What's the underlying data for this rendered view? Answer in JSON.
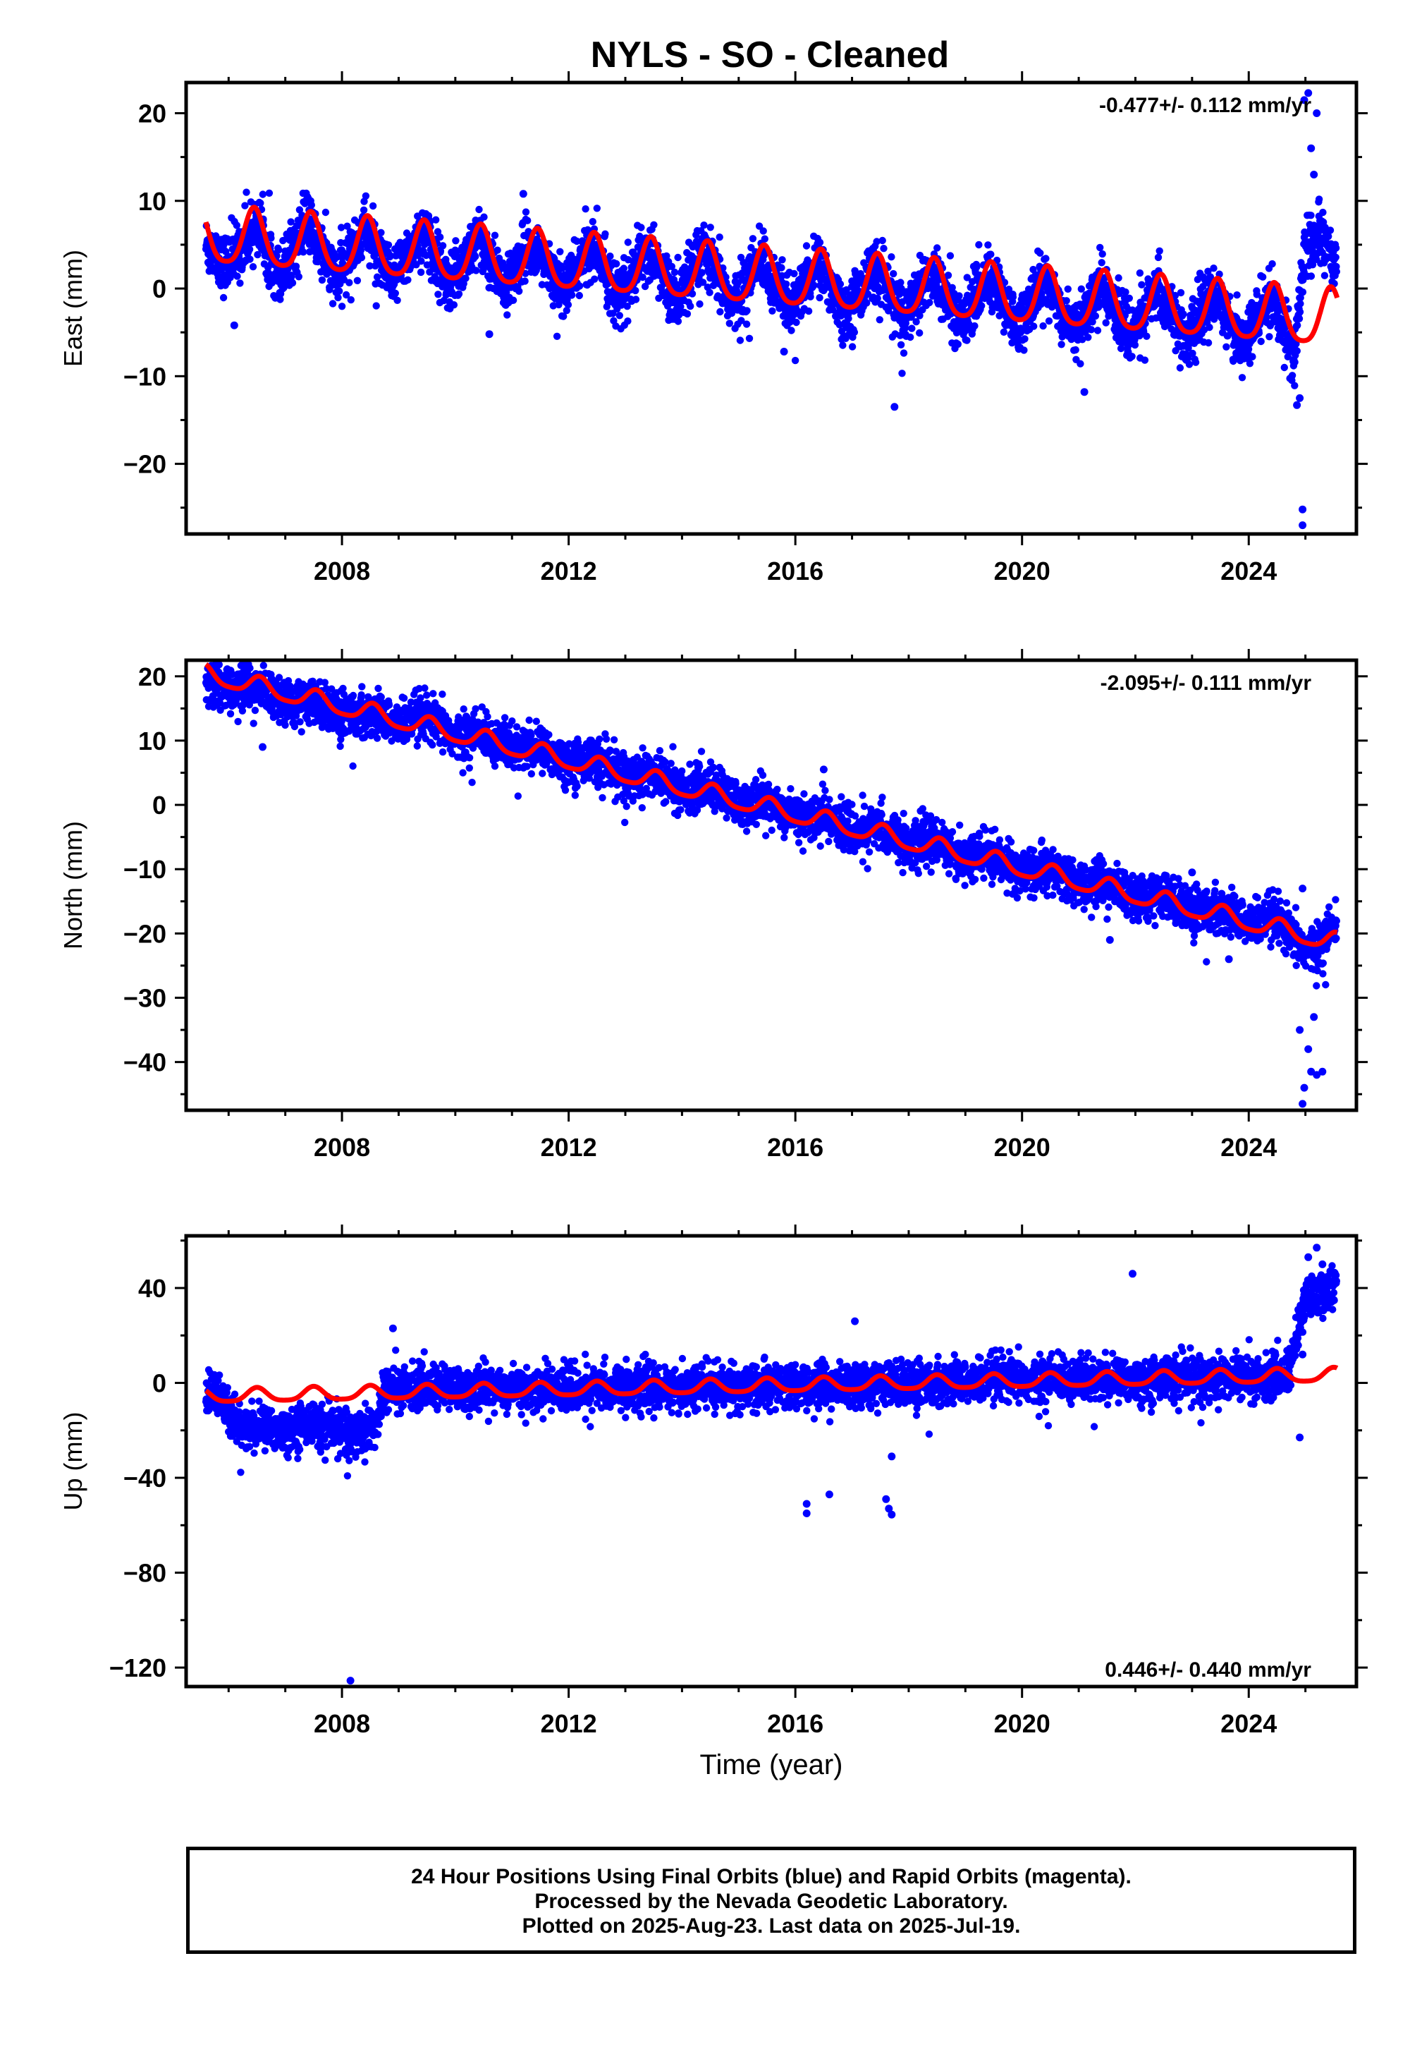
{
  "title": "NYLS  - SO - Cleaned",
  "colors": {
    "data": "#0000ff",
    "model": "#ff0000",
    "axis": "#000000"
  },
  "footer": {
    "line1": "24 Hour Positions Using Final Orbits (blue) and Rapid Orbits (magenta).",
    "line2": "Processed by the Nevada Geodetic Laboratory.",
    "line3": "Plotted on 2025-Aug-23. Last data on 2025-Jul-19."
  },
  "chart_data": [
    {
      "type": "scatter",
      "component": "east",
      "ylabel": "East (mm)",
      "xlabel": "",
      "rate_text": "-0.477+/- 0.112 mm/yr",
      "xlim": [
        2005.25,
        2025.9
      ],
      "ylim": [
        -28,
        23.5
      ],
      "xticks": [
        2008,
        2012,
        2016,
        2020,
        2024
      ],
      "yticks": [
        20,
        10,
        0,
        -10,
        -20
      ],
      "grid": false,
      "model": {
        "intercept_2015": 1.4,
        "rate": -0.477,
        "annual_amp": 3.2,
        "annual_peak": 0.45,
        "semiannual_amp": 0.6
      },
      "observations": {
        "start": 2005.6,
        "end": 2025.55,
        "scatter_sd": 1.6,
        "series": [
          {
            "name": "Final Orbits (blue)",
            "values": [
              [
                2005.6,
                5.0
              ],
              [
                2005.9,
                2.5
              ],
              [
                2006.2,
                4.5
              ],
              [
                2006.5,
                7.5
              ],
              [
                2006.9,
                1.5
              ],
              [
                2007.4,
                7.5
              ],
              [
                2007.9,
                1.0
              ],
              [
                2008.4,
                7.0
              ],
              [
                2008.9,
                0.8
              ],
              [
                2009.4,
                6.5
              ],
              [
                2009.9,
                0.5
              ],
              [
                2010.4,
                6.0
              ],
              [
                2010.9,
                0.0
              ],
              [
                2011.3,
                5.5
              ],
              [
                2011.9,
                -0.5
              ],
              [
                2012.4,
                5.0
              ],
              [
                2012.9,
                -1.0
              ],
              [
                2013.4,
                4.5
              ],
              [
                2013.9,
                -1.5
              ],
              [
                2014.4,
                4.0
              ],
              [
                2014.9,
                -2.0
              ],
              [
                2015.4,
                3.5
              ],
              [
                2015.9,
                -2.5
              ],
              [
                2016.4,
                3.0
              ],
              [
                2016.9,
                -3.0
              ],
              [
                2017.4,
                2.5
              ],
              [
                2017.9,
                -3.5
              ],
              [
                2018.4,
                2.0
              ],
              [
                2018.9,
                -4.0
              ],
              [
                2019.4,
                1.5
              ],
              [
                2019.9,
                -4.5
              ],
              [
                2020.4,
                1.0
              ],
              [
                2020.9,
                -5.0
              ],
              [
                2021.4,
                0.5
              ],
              [
                2021.9,
                -5.5
              ],
              [
                2022.4,
                0.0
              ],
              [
                2022.9,
                -6.0
              ],
              [
                2023.4,
                -0.5
              ],
              [
                2023.9,
                -6.5
              ],
              [
                2024.4,
                -1.0
              ],
              [
                2024.8,
                -7.5
              ],
              [
                2025.0,
                5.0
              ],
              [
                2025.3,
                6.0
              ],
              [
                2025.5,
                2.5
              ]
            ]
          }
        ],
        "outliers": [
          [
            2006.1,
            -4.2
          ],
          [
            2011.2,
            10.8
          ],
          [
            2017.75,
            -13.5
          ],
          [
            2021.1,
            -11.8
          ],
          [
            2024.85,
            -13.3
          ],
          [
            2024.95,
            -25.2
          ],
          [
            2024.95,
            -27.0
          ],
          [
            2024.98,
            21.5
          ],
          [
            2025.05,
            22.3
          ],
          [
            2025.2,
            20.0
          ],
          [
            2025.1,
            16.0
          ],
          [
            2025.15,
            13.0
          ],
          [
            2010.6,
            -5.2
          ],
          [
            2015.8,
            -7.2
          ],
          [
            2024.9,
            -12.5
          ]
        ]
      }
    },
    {
      "type": "scatter",
      "component": "north",
      "ylabel": "North (mm)",
      "xlabel": "",
      "rate_text": "-2.095+/- 0.111 mm/yr",
      "xlim": [
        2005.25,
        2025.9
      ],
      "ylim": [
        -47.5,
        22.5
      ],
      "xticks": [
        2008,
        2012,
        2016,
        2020,
        2024
      ],
      "yticks": [
        20,
        10,
        0,
        -10,
        -20,
        -30,
        -40
      ],
      "grid": false,
      "model": {
        "intercept_2015": 0.6,
        "rate": -2.095,
        "annual_amp": 1.4,
        "annual_peak": 0.55,
        "semiannual_amp": 0.3
      },
      "observations": {
        "start": 2005.6,
        "end": 2025.55,
        "scatter_sd": 1.7,
        "series": [
          {
            "name": "Final Orbits (blue)",
            "values": [
              [
                2005.6,
                19.0
              ],
              [
                2006.0,
                18.0
              ],
              [
                2006.5,
                18.5
              ],
              [
                2007.0,
                16.0
              ],
              [
                2007.5,
                16.0
              ],
              [
                2008.0,
                14.0
              ],
              [
                2008.5,
                14.5
              ],
              [
                2009.0,
                12.5
              ],
              [
                2009.5,
                13.5
              ],
              [
                2010.0,
                10.5
              ],
              [
                2010.5,
                11.0
              ],
              [
                2011.0,
                8.5
              ],
              [
                2011.5,
                9.0
              ],
              [
                2012.0,
                6.5
              ],
              [
                2012.5,
                7.0
              ],
              [
                2013.0,
                4.0
              ],
              [
                2013.5,
                5.0
              ],
              [
                2014.0,
                2.0
              ],
              [
                2014.5,
                3.0
              ],
              [
                2015.0,
                0.0
              ],
              [
                2015.5,
                0.5
              ],
              [
                2016.0,
                -2.0
              ],
              [
                2016.5,
                -1.5
              ],
              [
                2017.0,
                -4.5
              ],
              [
                2017.5,
                -3.5
              ],
              [
                2018.0,
                -6.5
              ],
              [
                2018.5,
                -5.5
              ],
              [
                2019.0,
                -8.5
              ],
              [
                2019.5,
                -8.0
              ],
              [
                2020.0,
                -10.5
              ],
              [
                2020.5,
                -10.0
              ],
              [
                2021.0,
                -12.5
              ],
              [
                2021.5,
                -12.0
              ],
              [
                2022.0,
                -14.5
              ],
              [
                2022.5,
                -14.0
              ],
              [
                2023.0,
                -16.5
              ],
              [
                2023.5,
                -16.0
              ],
              [
                2024.0,
                -18.5
              ],
              [
                2024.5,
                -18.0
              ],
              [
                2024.9,
                -22.0
              ],
              [
                2025.2,
                -22.5
              ],
              [
                2025.5,
                -19.0
              ]
            ]
          }
        ],
        "outliers": [
          [
            2006.6,
            9.0
          ],
          [
            2016.5,
            5.5
          ],
          [
            2023.0,
            -10.5
          ],
          [
            2024.95,
            -46.5
          ],
          [
            2024.98,
            -44.0
          ],
          [
            2025.1,
            -41.5
          ],
          [
            2025.2,
            -42.0
          ],
          [
            2025.3,
            -41.5
          ],
          [
            2024.9,
            -35.0
          ],
          [
            2025.05,
            -38.0
          ],
          [
            2025.15,
            -33.0
          ],
          [
            2024.95,
            -13.0
          ],
          [
            2023.65,
            -24.0
          ],
          [
            2021.55,
            -21.0
          ]
        ]
      }
    },
    {
      "type": "scatter",
      "component": "up",
      "ylabel": "Up (mm)",
      "xlabel": "Time (year)",
      "rate_text": "0.446+/- 0.440 mm/yr",
      "xlim": [
        2005.25,
        2025.9
      ],
      "ylim": [
        -128,
        62
      ],
      "xticks": [
        2008,
        2012,
        2016,
        2020,
        2024
      ],
      "yticks": [
        40,
        0,
        -40,
        -80,
        -120
      ],
      "grid": false,
      "model": {
        "intercept_2015": -1.5,
        "rate": 0.446,
        "annual_amp": 2.8,
        "annual_peak": 0.5,
        "semiannual_amp": 0.6
      },
      "observations": {
        "start": 2005.6,
        "end": 2025.55,
        "scatter_sd": 4.5,
        "series": [
          {
            "name": "Final Orbits (blue)",
            "values": [
              [
                2005.6,
                -5.0
              ],
              [
                2005.8,
                -2.0
              ],
              [
                2006.0,
                -15.0
              ],
              [
                2006.3,
                -20.0
              ],
              [
                2006.6,
                -18.0
              ],
              [
                2007.0,
                -20.0
              ],
              [
                2007.4,
                -17.0
              ],
              [
                2007.8,
                -19.0
              ],
              [
                2008.2,
                -22.0
              ],
              [
                2008.6,
                -18.0
              ],
              [
                2008.75,
                -3.0
              ],
              [
                2009.2,
                -1.5
              ],
              [
                2009.7,
                -2.0
              ],
              [
                2010.2,
                -3.0
              ],
              [
                2010.7,
                -2.0
              ],
              [
                2011.2,
                -3.0
              ],
              [
                2011.7,
                -2.0
              ],
              [
                2012.2,
                -3.0
              ],
              [
                2012.7,
                -2.0
              ],
              [
                2013.2,
                -2.5
              ],
              [
                2013.7,
                -2.0
              ],
              [
                2014.2,
                -2.5
              ],
              [
                2014.7,
                -1.5
              ],
              [
                2015.2,
                -2.0
              ],
              [
                2015.7,
                -1.0
              ],
              [
                2016.2,
                -1.5
              ],
              [
                2016.7,
                -1.0
              ],
              [
                2017.2,
                -1.0
              ],
              [
                2017.7,
                0.0
              ],
              [
                2018.2,
                -0.5
              ],
              [
                2018.7,
                1.0
              ],
              [
                2019.2,
                0.0
              ],
              [
                2019.7,
                1.5
              ],
              [
                2020.2,
                0.5
              ],
              [
                2020.7,
                2.0
              ],
              [
                2021.2,
                0.5
              ],
              [
                2021.7,
                2.0
              ],
              [
                2022.2,
                1.0
              ],
              [
                2022.7,
                2.5
              ],
              [
                2023.2,
                1.0
              ],
              [
                2023.7,
                3.0
              ],
              [
                2024.2,
                1.5
              ],
              [
                2024.7,
                4.0
              ],
              [
                2025.0,
                35.0
              ],
              [
                2025.25,
                38.0
              ],
              [
                2025.5,
                40.0
              ]
            ]
          }
        ],
        "outliers": [
          [
            2008.15,
            -125.5
          ],
          [
            2016.2,
            -51.0
          ],
          [
            2016.2,
            -55.0
          ],
          [
            2016.6,
            -47.0
          ],
          [
            2017.6,
            -49.0
          ],
          [
            2017.65,
            -53.0
          ],
          [
            2017.7,
            -55.5
          ],
          [
            2017.7,
            -31.0
          ],
          [
            2021.95,
            46.0
          ],
          [
            2024.9,
            -23.0
          ],
          [
            2025.05,
            53.0
          ],
          [
            2025.2,
            57.0
          ],
          [
            2025.3,
            50.0
          ],
          [
            2008.9,
            23.0
          ],
          [
            2017.05,
            26.0
          ],
          [
            2024.95,
            12.0
          ]
        ]
      }
    }
  ]
}
